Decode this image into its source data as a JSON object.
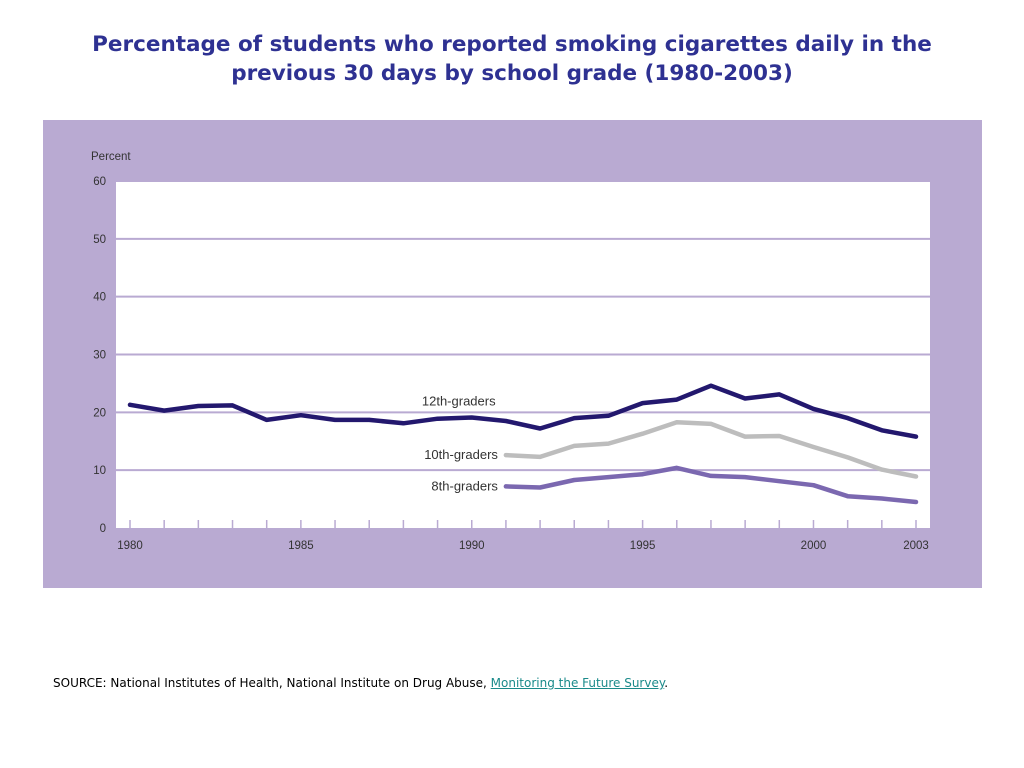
{
  "title": "Percentage of students who reported smoking cigarettes daily in the previous 30 days by school grade (1980-2003)",
  "source": {
    "prefix": "SOURCE: National Institutes of Health, National Institute on Drug Abuse, ",
    "link_text": "Monitoring the Future Survey",
    "suffix": "."
  },
  "colors": {
    "panel_background": "#b9aad2",
    "plot_background": "#ffffff",
    "gridline": "#b9aad2",
    "title": "#2e3192",
    "link": "#1a8a8a"
  },
  "chart_data": {
    "type": "line",
    "title": "",
    "ylabel": "Percent",
    "xlabel": "",
    "xlim": [
      1980,
      2003
    ],
    "ylim": [
      0,
      60
    ],
    "yticks": [
      "0",
      "10",
      "20",
      "30",
      "40",
      "50",
      "60"
    ],
    "xtick_labels": [
      {
        "x": 1980,
        "label": "1980"
      },
      {
        "x": 1985,
        "label": "1985"
      },
      {
        "x": 1990,
        "label": "1990"
      },
      {
        "x": 1995,
        "label": "1995"
      },
      {
        "x": 2000,
        "label": "2000"
      },
      {
        "x": 2003,
        "label": "2003"
      }
    ],
    "grid": true,
    "legend": "inline labels",
    "series": [
      {
        "name": "12th-graders",
        "color": "#23186e",
        "x": [
          1980,
          1981,
          1982,
          1983,
          1984,
          1985,
          1986,
          1987,
          1988,
          1989,
          1990,
          1991,
          1992,
          1993,
          1994,
          1995,
          1996,
          1997,
          1998,
          1999,
          2000,
          2001,
          2002,
          2003
        ],
        "y": [
          21.3,
          20.3,
          21.1,
          21.2,
          18.7,
          19.5,
          18.7,
          18.7,
          18.1,
          18.9,
          19.1,
          18.5,
          17.2,
          19.0,
          19.4,
          21.6,
          22.2,
          24.6,
          22.4,
          23.1,
          20.6,
          19.0,
          16.9,
          15.8
        ]
      },
      {
        "name": "10th-graders",
        "color": "#bdbdbd",
        "x": [
          1991,
          1992,
          1993,
          1994,
          1995,
          1996,
          1997,
          1998,
          1999,
          2000,
          2001,
          2002,
          2003
        ],
        "y": [
          12.6,
          12.3,
          14.2,
          14.6,
          16.3,
          18.3,
          18.0,
          15.8,
          15.9,
          14.0,
          12.2,
          10.1,
          8.9
        ]
      },
      {
        "name": "8th-graders",
        "color": "#7b68b0",
        "x": [
          1991,
          1992,
          1993,
          1994,
          1995,
          1996,
          1997,
          1998,
          1999,
          2000,
          2001,
          2002,
          2003
        ],
        "y": [
          7.2,
          7.0,
          8.3,
          8.8,
          9.3,
          10.4,
          9.0,
          8.8,
          8.1,
          7.4,
          5.5,
          5.1,
          4.5
        ]
      }
    ]
  }
}
